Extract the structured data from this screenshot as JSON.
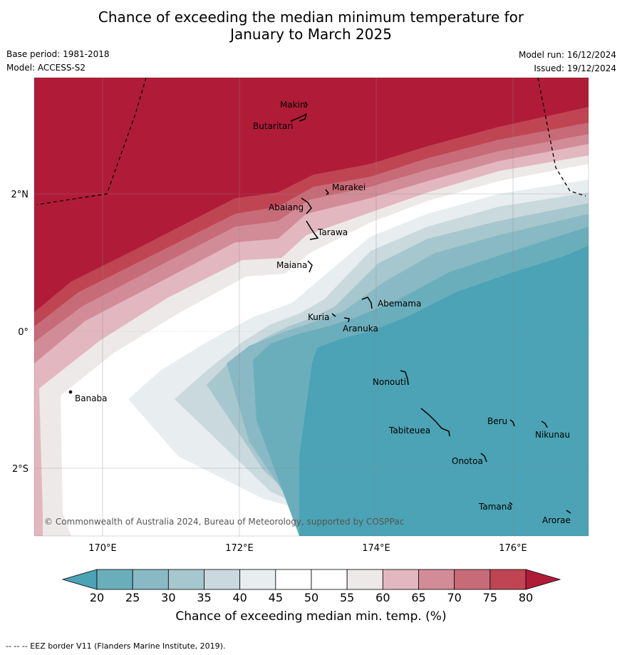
{
  "title": {
    "line1": "Chance of exceeding the median minimum temperature for",
    "line2": "January to March 2025"
  },
  "meta": {
    "base_period": "Base period: 1981-2018",
    "model": "Model: ACCESS-S2",
    "model_run": "Model run: 16/12/2024",
    "issued": "Issued: 19/12/2024"
  },
  "map": {
    "lon_ticks": [
      "170°E",
      "172°E",
      "174°E",
      "176°E"
    ],
    "lat_ticks": [
      "2°N",
      "0°",
      "2°S"
    ],
    "copyright": "© Commonwealth of Australia 2024, Bureau of Meteorology, supported by COSPPac",
    "islands": [
      "Makin",
      "Butaritari",
      "Marakei",
      "Abaiang",
      "Tarawa",
      "Maiana",
      "Abemama",
      "Kuria",
      "Aranuka",
      "Banaba",
      "Nonouti",
      "Tabiteuea",
      "Beru",
      "Nikunau",
      "Onotoa",
      "Tamana",
      "Arorae"
    ],
    "color_below": "#4ba3b5",
    "color_above": "#b01c38"
  },
  "colorbar": {
    "ticks": [
      "20",
      "25",
      "30",
      "35",
      "40",
      "45",
      "50",
      "55",
      "60",
      "65",
      "70",
      "75",
      "80"
    ],
    "colors": [
      "#6aaebc",
      "#89b9c4",
      "#a6c7cd",
      "#c9d9de",
      "#e8edf0",
      "#ffffff",
      "#ffffff",
      "#ede9e9",
      "#e3b7bf",
      "#d28c97",
      "#c76b78",
      "#c04553"
    ],
    "label": "Chance of exceeding median min. temp. (%)"
  },
  "footer": "--  --  -- EEZ border V11 (Flanders Marine Institute, 2019)."
}
